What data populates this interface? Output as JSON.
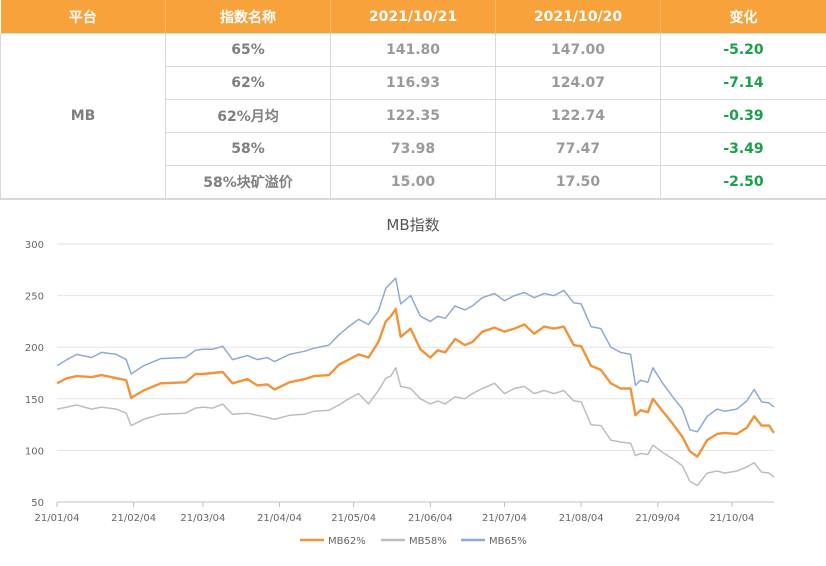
{
  "table": {
    "headers": [
      "平台",
      "指数名称",
      "2021/10/21",
      "2021/10/20",
      "变化"
    ],
    "platform": "MB",
    "rows": [
      {
        "name": "65%",
        "d1": "141.80",
        "d2": "147.00",
        "change": "-5.20"
      },
      {
        "name": "62%",
        "d1": "116.93",
        "d2": "124.07",
        "change": "-7.14"
      },
      {
        "name": "62%月均",
        "d1": "122.35",
        "d2": "122.74",
        "change": "-0.39"
      },
      {
        "name": "58%",
        "d1": "73.98",
        "d2": "77.47",
        "change": "-3.49"
      },
      {
        "name": "58%块矿溢价",
        "d1": "15.00",
        "d2": "17.50",
        "change": "-2.50"
      }
    ]
  },
  "colors": {
    "header_bg": "#f7a23b",
    "header_text": "#ffffff",
    "change_negative": "#18a04a",
    "series_mb62": "#f2933a",
    "series_mb58": "#bdbdbd",
    "series_mb65": "#8eaad3"
  },
  "chart_data": {
    "type": "line",
    "title": "MB指数",
    "ylim": [
      50,
      300
    ],
    "yticks": [
      50,
      100,
      150,
      200,
      250,
      300
    ],
    "xlim": [
      "2021-01-04",
      "2021-10-21"
    ],
    "xticks": [
      {
        "date": "2021-01-04",
        "label": "21/01/04"
      },
      {
        "date": "2021-02-04",
        "label": "21/02/04"
      },
      {
        "date": "2021-03-04",
        "label": "21/03/04"
      },
      {
        "date": "2021-04-04",
        "label": "21/04/04"
      },
      {
        "date": "2021-05-04",
        "label": "21/05/04"
      },
      {
        "date": "2021-06-04",
        "label": "21/06/04"
      },
      {
        "date": "2021-07-04",
        "label": "21/07/04"
      },
      {
        "date": "2021-08-04",
        "label": "21/08/04"
      },
      {
        "date": "2021-09-04",
        "label": "21/09/04"
      },
      {
        "date": "2021-10-04",
        "label": "21/10/04"
      }
    ],
    "grid": true,
    "legend_position": "bottom",
    "series": [
      {
        "name": "MB62%",
        "color": "#f2933a",
        "points": [
          [
            "2021-01-04",
            165
          ],
          [
            "2021-01-08",
            170
          ],
          [
            "2021-01-12",
            172
          ],
          [
            "2021-01-18",
            171
          ],
          [
            "2021-01-22",
            173
          ],
          [
            "2021-01-28",
            170
          ],
          [
            "2021-02-01",
            168
          ],
          [
            "2021-02-03",
            151
          ],
          [
            "2021-02-08",
            158
          ],
          [
            "2021-02-15",
            165
          ],
          [
            "2021-02-25",
            166
          ],
          [
            "2021-03-01",
            174
          ],
          [
            "2021-03-04",
            174
          ],
          [
            "2021-03-08",
            175
          ],
          [
            "2021-03-12",
            176
          ],
          [
            "2021-03-16",
            165
          ],
          [
            "2021-03-22",
            169
          ],
          [
            "2021-03-26",
            163
          ],
          [
            "2021-03-30",
            164
          ],
          [
            "2021-04-02",
            159
          ],
          [
            "2021-04-08",
            166
          ],
          [
            "2021-04-14",
            169
          ],
          [
            "2021-04-18",
            172
          ],
          [
            "2021-04-24",
            173
          ],
          [
            "2021-04-28",
            183
          ],
          [
            "2021-05-02",
            188
          ],
          [
            "2021-05-06",
            193
          ],
          [
            "2021-05-10",
            190
          ],
          [
            "2021-05-14",
            205
          ],
          [
            "2021-05-17",
            225
          ],
          [
            "2021-05-19",
            230
          ],
          [
            "2021-05-21",
            237
          ],
          [
            "2021-05-23",
            210
          ],
          [
            "2021-05-27",
            218
          ],
          [
            "2021-05-31",
            198
          ],
          [
            "2021-06-04",
            190
          ],
          [
            "2021-06-07",
            197
          ],
          [
            "2021-06-10",
            195
          ],
          [
            "2021-06-14",
            208
          ],
          [
            "2021-06-18",
            202
          ],
          [
            "2021-06-21",
            205
          ],
          [
            "2021-06-25",
            215
          ],
          [
            "2021-06-30",
            219
          ],
          [
            "2021-07-04",
            215
          ],
          [
            "2021-07-08",
            218
          ],
          [
            "2021-07-12",
            222
          ],
          [
            "2021-07-16",
            213
          ],
          [
            "2021-07-20",
            220
          ],
          [
            "2021-07-24",
            218
          ],
          [
            "2021-07-28",
            220
          ],
          [
            "2021-08-01",
            202
          ],
          [
            "2021-08-04",
            201
          ],
          [
            "2021-08-08",
            182
          ],
          [
            "2021-08-12",
            178
          ],
          [
            "2021-08-16",
            165
          ],
          [
            "2021-08-20",
            160
          ],
          [
            "2021-08-24",
            160
          ],
          [
            "2021-08-26",
            134
          ],
          [
            "2021-08-28",
            139
          ],
          [
            "2021-08-31",
            137
          ],
          [
            "2021-09-02",
            150
          ],
          [
            "2021-09-06",
            138
          ],
          [
            "2021-09-10",
            126
          ],
          [
            "2021-09-14",
            113
          ],
          [
            "2021-09-17",
            99
          ],
          [
            "2021-09-20",
            94
          ],
          [
            "2021-09-24",
            110
          ],
          [
            "2021-09-28",
            116
          ],
          [
            "2021-10-01",
            117
          ],
          [
            "2021-10-06",
            116
          ],
          [
            "2021-10-10",
            122
          ],
          [
            "2021-10-13",
            133
          ],
          [
            "2021-10-16",
            124
          ],
          [
            "2021-10-19",
            124
          ],
          [
            "2021-10-21",
            117
          ]
        ]
      },
      {
        "name": "MB58%",
        "color": "#bdbdbd",
        "points": [
          [
            "2021-01-04",
            140
          ],
          [
            "2021-01-08",
            142
          ],
          [
            "2021-01-12",
            144
          ],
          [
            "2021-01-18",
            140
          ],
          [
            "2021-01-22",
            142
          ],
          [
            "2021-01-28",
            140
          ],
          [
            "2021-02-01",
            136
          ],
          [
            "2021-02-03",
            124
          ],
          [
            "2021-02-08",
            130
          ],
          [
            "2021-02-15",
            135
          ],
          [
            "2021-02-25",
            136
          ],
          [
            "2021-03-01",
            141
          ],
          [
            "2021-03-04",
            142
          ],
          [
            "2021-03-08",
            141
          ],
          [
            "2021-03-12",
            145
          ],
          [
            "2021-03-16",
            135
          ],
          [
            "2021-03-22",
            136
          ],
          [
            "2021-03-26",
            134
          ],
          [
            "2021-03-30",
            132
          ],
          [
            "2021-04-02",
            130
          ],
          [
            "2021-04-08",
            134
          ],
          [
            "2021-04-14",
            135
          ],
          [
            "2021-04-18",
            138
          ],
          [
            "2021-04-24",
            139
          ],
          [
            "2021-04-28",
            144
          ],
          [
            "2021-05-02",
            150
          ],
          [
            "2021-05-06",
            155
          ],
          [
            "2021-05-10",
            145
          ],
          [
            "2021-05-14",
            158
          ],
          [
            "2021-05-17",
            170
          ],
          [
            "2021-05-19",
            172
          ],
          [
            "2021-05-21",
            180
          ],
          [
            "2021-05-23",
            162
          ],
          [
            "2021-05-27",
            160
          ],
          [
            "2021-05-31",
            150
          ],
          [
            "2021-06-04",
            145
          ],
          [
            "2021-06-07",
            148
          ],
          [
            "2021-06-10",
            145
          ],
          [
            "2021-06-14",
            152
          ],
          [
            "2021-06-18",
            150
          ],
          [
            "2021-06-21",
            155
          ],
          [
            "2021-06-25",
            160
          ],
          [
            "2021-06-30",
            165
          ],
          [
            "2021-07-04",
            155
          ],
          [
            "2021-07-08",
            160
          ],
          [
            "2021-07-12",
            162
          ],
          [
            "2021-07-16",
            155
          ],
          [
            "2021-07-20",
            158
          ],
          [
            "2021-07-24",
            155
          ],
          [
            "2021-07-28",
            158
          ],
          [
            "2021-08-01",
            148
          ],
          [
            "2021-08-04",
            147
          ],
          [
            "2021-08-08",
            125
          ],
          [
            "2021-08-12",
            124
          ],
          [
            "2021-08-16",
            110
          ],
          [
            "2021-08-20",
            108
          ],
          [
            "2021-08-24",
            107
          ],
          [
            "2021-08-26",
            95
          ],
          [
            "2021-08-28",
            97
          ],
          [
            "2021-08-31",
            96
          ],
          [
            "2021-09-02",
            105
          ],
          [
            "2021-09-06",
            98
          ],
          [
            "2021-09-10",
            92
          ],
          [
            "2021-09-14",
            85
          ],
          [
            "2021-09-17",
            70
          ],
          [
            "2021-09-20",
            66
          ],
          [
            "2021-09-24",
            78
          ],
          [
            "2021-09-28",
            80
          ],
          [
            "2021-10-01",
            78
          ],
          [
            "2021-10-06",
            80
          ],
          [
            "2021-10-10",
            84
          ],
          [
            "2021-10-13",
            88
          ],
          [
            "2021-10-16",
            79
          ],
          [
            "2021-10-19",
            78
          ],
          [
            "2021-10-21",
            74
          ]
        ]
      },
      {
        "name": "MB65%",
        "color": "#8eaad3",
        "points": [
          [
            "2021-01-04",
            182
          ],
          [
            "2021-01-08",
            188
          ],
          [
            "2021-01-12",
            193
          ],
          [
            "2021-01-18",
            190
          ],
          [
            "2021-01-22",
            195
          ],
          [
            "2021-01-28",
            193
          ],
          [
            "2021-02-01",
            188
          ],
          [
            "2021-02-03",
            174
          ],
          [
            "2021-02-08",
            182
          ],
          [
            "2021-02-15",
            189
          ],
          [
            "2021-02-25",
            190
          ],
          [
            "2021-03-01",
            197
          ],
          [
            "2021-03-04",
            198
          ],
          [
            "2021-03-08",
            198
          ],
          [
            "2021-03-12",
            201
          ],
          [
            "2021-03-16",
            188
          ],
          [
            "2021-03-22",
            192
          ],
          [
            "2021-03-26",
            188
          ],
          [
            "2021-03-30",
            190
          ],
          [
            "2021-04-02",
            186
          ],
          [
            "2021-04-08",
            193
          ],
          [
            "2021-04-14",
            196
          ],
          [
            "2021-04-18",
            199
          ],
          [
            "2021-04-24",
            202
          ],
          [
            "2021-04-28",
            212
          ],
          [
            "2021-05-02",
            220
          ],
          [
            "2021-05-06",
            227
          ],
          [
            "2021-05-10",
            222
          ],
          [
            "2021-05-14",
            235
          ],
          [
            "2021-05-17",
            257
          ],
          [
            "2021-05-19",
            262
          ],
          [
            "2021-05-21",
            267
          ],
          [
            "2021-05-23",
            242
          ],
          [
            "2021-05-27",
            250
          ],
          [
            "2021-05-31",
            230
          ],
          [
            "2021-06-04",
            225
          ],
          [
            "2021-06-07",
            230
          ],
          [
            "2021-06-10",
            228
          ],
          [
            "2021-06-14",
            240
          ],
          [
            "2021-06-18",
            236
          ],
          [
            "2021-06-21",
            240
          ],
          [
            "2021-06-25",
            248
          ],
          [
            "2021-06-30",
            252
          ],
          [
            "2021-07-04",
            245
          ],
          [
            "2021-07-08",
            250
          ],
          [
            "2021-07-12",
            253
          ],
          [
            "2021-07-16",
            248
          ],
          [
            "2021-07-20",
            252
          ],
          [
            "2021-07-24",
            250
          ],
          [
            "2021-07-28",
            255
          ],
          [
            "2021-08-01",
            243
          ],
          [
            "2021-08-04",
            242
          ],
          [
            "2021-08-08",
            220
          ],
          [
            "2021-08-12",
            218
          ],
          [
            "2021-08-16",
            200
          ],
          [
            "2021-08-20",
            195
          ],
          [
            "2021-08-24",
            193
          ],
          [
            "2021-08-26",
            163
          ],
          [
            "2021-08-28",
            168
          ],
          [
            "2021-08-31",
            166
          ],
          [
            "2021-09-02",
            180
          ],
          [
            "2021-09-06",
            165
          ],
          [
            "2021-09-10",
            152
          ],
          [
            "2021-09-14",
            140
          ],
          [
            "2021-09-17",
            120
          ],
          [
            "2021-09-20",
            118
          ],
          [
            "2021-09-24",
            133
          ],
          [
            "2021-09-28",
            140
          ],
          [
            "2021-10-01",
            138
          ],
          [
            "2021-10-06",
            140
          ],
          [
            "2021-10-10",
            148
          ],
          [
            "2021-10-13",
            159
          ],
          [
            "2021-10-16",
            147
          ],
          [
            "2021-10-19",
            146
          ],
          [
            "2021-10-21",
            142
          ]
        ]
      }
    ]
  }
}
